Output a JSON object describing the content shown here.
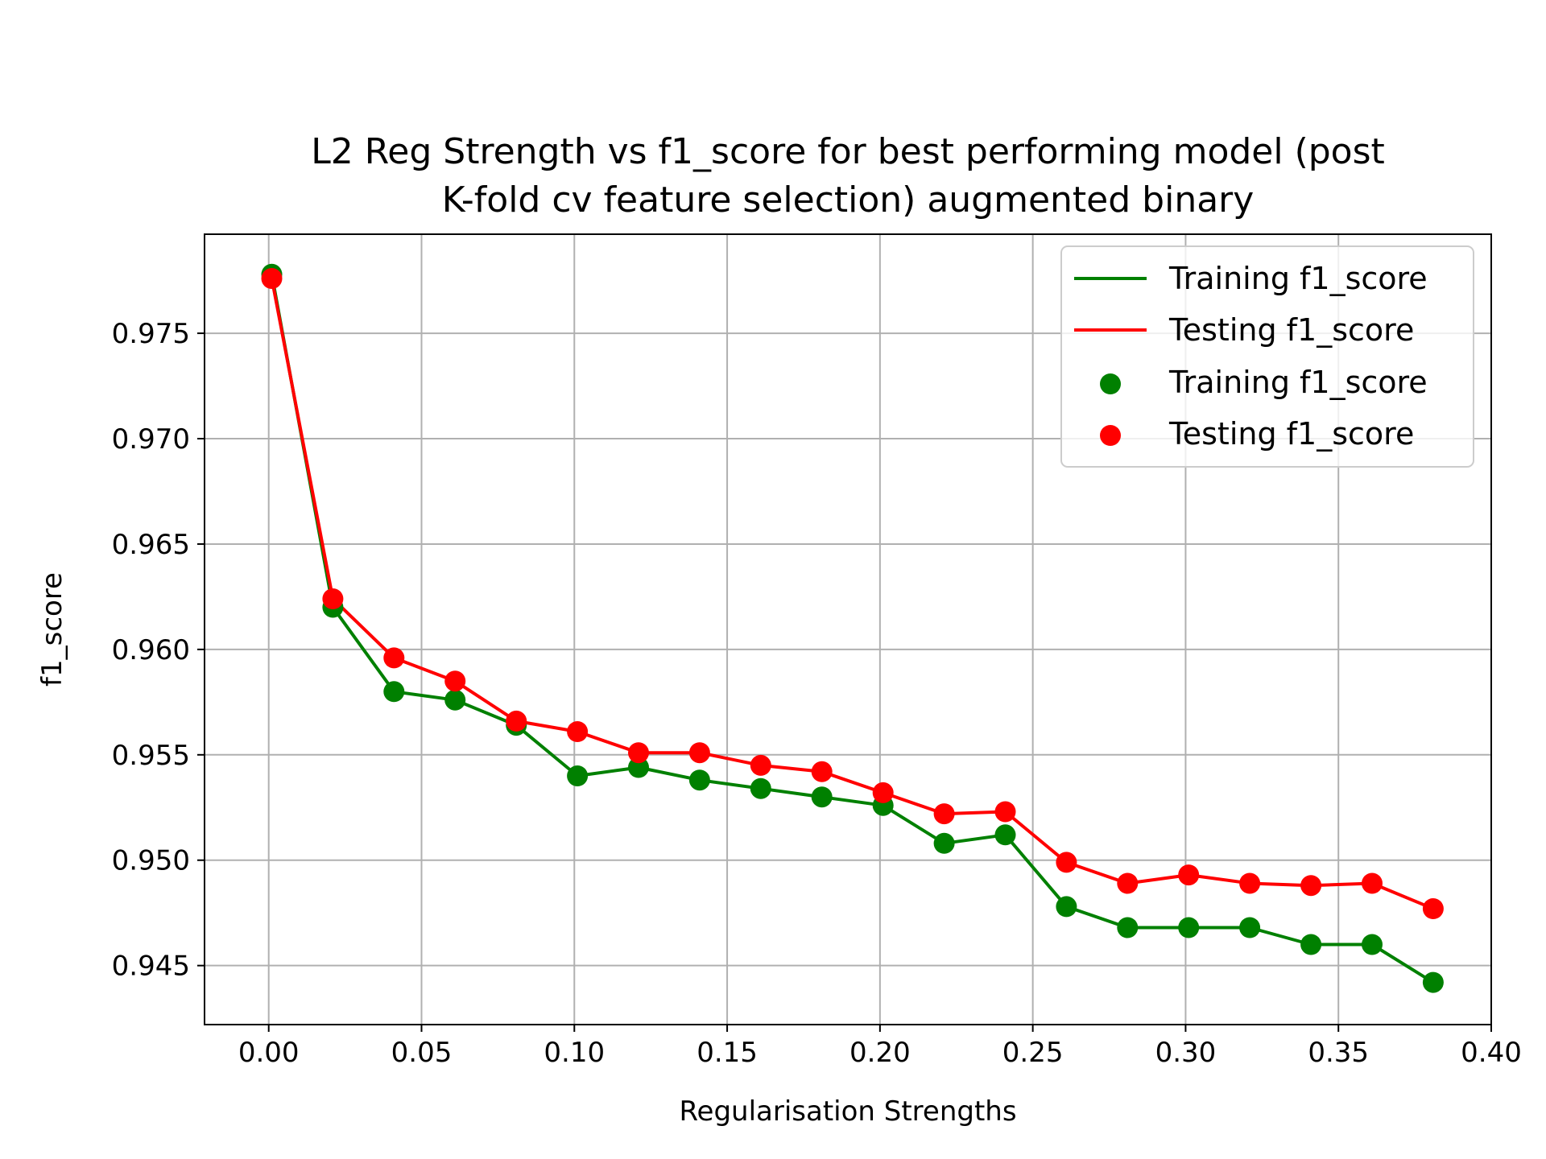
{
  "chart_data": {
    "type": "line",
    "title_lines": [
      "L2 Reg Strength vs f1_score for best performing model (post",
      "K-fold cv feature selection) augmented binary"
    ],
    "xlabel": "Regularisation Strengths",
    "ylabel": "f1_score",
    "xlim": [
      -0.021,
      0.4
    ],
    "ylim": [
      0.9422,
      0.9797
    ],
    "xticks": [
      0.0,
      0.05,
      0.1,
      0.15,
      0.2,
      0.25,
      0.3,
      0.35,
      0.4
    ],
    "xtick_labels": [
      "0.00",
      "0.05",
      "0.10",
      "0.15",
      "0.20",
      "0.25",
      "0.30",
      "0.35",
      "0.40"
    ],
    "yticks": [
      0.945,
      0.95,
      0.955,
      0.96,
      0.965,
      0.97,
      0.975
    ],
    "ytick_labels": [
      "0.945",
      "0.950",
      "0.955",
      "0.960",
      "0.965",
      "0.970",
      "0.975"
    ],
    "grid": true,
    "legend_position": "top-right",
    "legend": [
      {
        "label": "Training f1_score",
        "kind": "line",
        "color": "#008000"
      },
      {
        "label": "Testing f1_score",
        "kind": "line",
        "color": "#ff0000"
      },
      {
        "label": "Training f1_score",
        "kind": "marker",
        "color": "#008000"
      },
      {
        "label": "Testing f1_score",
        "kind": "marker",
        "color": "#ff0000"
      }
    ],
    "x": [
      0.001,
      0.021,
      0.041,
      0.061,
      0.081,
      0.101,
      0.121,
      0.141,
      0.161,
      0.181,
      0.201,
      0.221,
      0.241,
      0.261,
      0.281,
      0.301,
      0.321,
      0.341,
      0.361,
      0.381
    ],
    "series": [
      {
        "name": "Training f1_score",
        "color": "#008000",
        "values": [
          0.9778,
          0.962,
          0.958,
          0.9576,
          0.9564,
          0.954,
          0.9544,
          0.9538,
          0.9534,
          0.953,
          0.9526,
          0.9508,
          0.9512,
          0.9478,
          0.9468,
          0.9468,
          0.9468,
          0.946,
          0.946,
          0.9442
        ]
      },
      {
        "name": "Testing f1_score",
        "color": "#ff0000",
        "values": [
          0.9776,
          0.9624,
          0.9596,
          0.9585,
          0.9566,
          0.9561,
          0.9551,
          0.9551,
          0.9545,
          0.9542,
          0.9532,
          0.9522,
          0.9523,
          0.9499,
          0.9489,
          0.9493,
          0.9489,
          0.9488,
          0.9489,
          0.9477
        ]
      }
    ]
  }
}
